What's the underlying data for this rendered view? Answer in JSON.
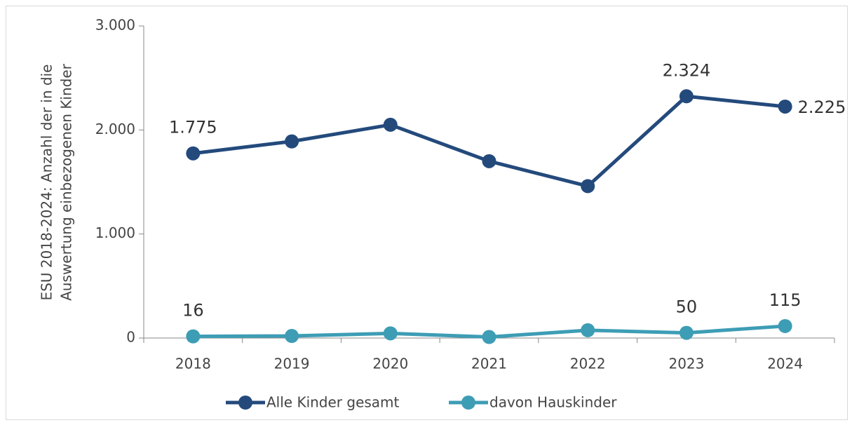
{
  "chart_data": {
    "type": "line",
    "ylabel": [
      "ESU 2018-2024: Anzahl der in die",
      "Auswertung einbezogenen Kinder"
    ],
    "categories": [
      "2018",
      "2019",
      "2020",
      "2021",
      "2022",
      "2023",
      "2024"
    ],
    "series": [
      {
        "name": "Alle Kinder gesamt",
        "color": "#244a7c",
        "values": [
          1775,
          1890,
          2050,
          1700,
          1460,
          2324,
          2225
        ],
        "value_labels": [
          "1.775",
          null,
          null,
          null,
          null,
          "2.324",
          "2.225"
        ]
      },
      {
        "name": "davon Hauskinder",
        "color": "#3d9db5",
        "values": [
          16,
          20,
          45,
          10,
          75,
          50,
          115
        ],
        "value_labels": [
          "16",
          null,
          null,
          null,
          null,
          "50",
          "115"
        ]
      }
    ],
    "ylim": [
      0,
      3000
    ],
    "yticks": [
      0,
      {
        "value": 1000,
        "label": "1.000"
      },
      {
        "value": 2000,
        "label": "2.000"
      },
      {
        "value": 3000,
        "label": "3.000"
      }
    ]
  }
}
